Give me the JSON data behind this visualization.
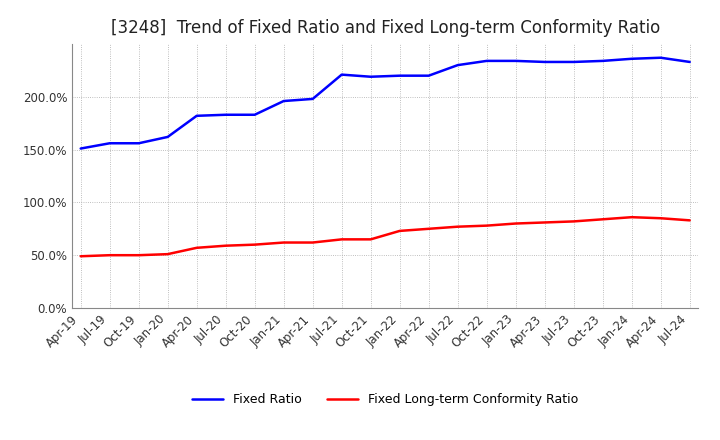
{
  "title": "[3248]  Trend of Fixed Ratio and Fixed Long-term Conformity Ratio",
  "fixed_ratio_values": [
    1.51,
    1.56,
    1.56,
    1.62,
    1.82,
    1.83,
    1.83,
    1.96,
    1.98,
    2.21,
    2.19,
    2.2,
    2.2,
    2.3,
    2.34,
    2.34,
    2.33,
    2.33,
    2.34,
    2.36,
    2.37,
    2.33
  ],
  "fixed_lt_ratio_values": [
    0.49,
    0.5,
    0.5,
    0.51,
    0.57,
    0.59,
    0.6,
    0.62,
    0.62,
    0.65,
    0.65,
    0.73,
    0.75,
    0.77,
    0.78,
    0.8,
    0.81,
    0.82,
    0.84,
    0.86,
    0.85,
    0.83
  ],
  "fixed_ratio_color": "#0000FF",
  "fixed_lt_ratio_color": "#FF0000",
  "fixed_ratio_label": "Fixed Ratio",
  "fixed_lt_ratio_label": "Fixed Long-term Conformity Ratio",
  "linewidth": 1.8,
  "ylim": [
    0.0,
    2.5
  ],
  "yticks": [
    0.0,
    0.5,
    1.0,
    1.5,
    2.0
  ],
  "ytick_labels": [
    "0.0%",
    "50.0%",
    "100.0%",
    "150.0%",
    "200.0%"
  ],
  "background_color": "#FFFFFF",
  "grid_color": "#AAAAAA",
  "title_fontsize": 12,
  "title_color": "#222222",
  "tick_fontsize": 8.5,
  "x_tick_labels": [
    "Apr-19",
    "Jul-19",
    "Oct-19",
    "Jan-20",
    "Apr-20",
    "Jul-20",
    "Oct-20",
    "Jan-21",
    "Apr-21",
    "Jul-21",
    "Oct-21",
    "Jan-22",
    "Apr-22",
    "Jul-22",
    "Oct-22",
    "Jan-23",
    "Apr-23",
    "Jul-23",
    "Oct-23",
    "Jan-24",
    "Apr-24",
    "Jul-24"
  ],
  "legend_fontsize": 9,
  "legend_handlelength": 2.5
}
